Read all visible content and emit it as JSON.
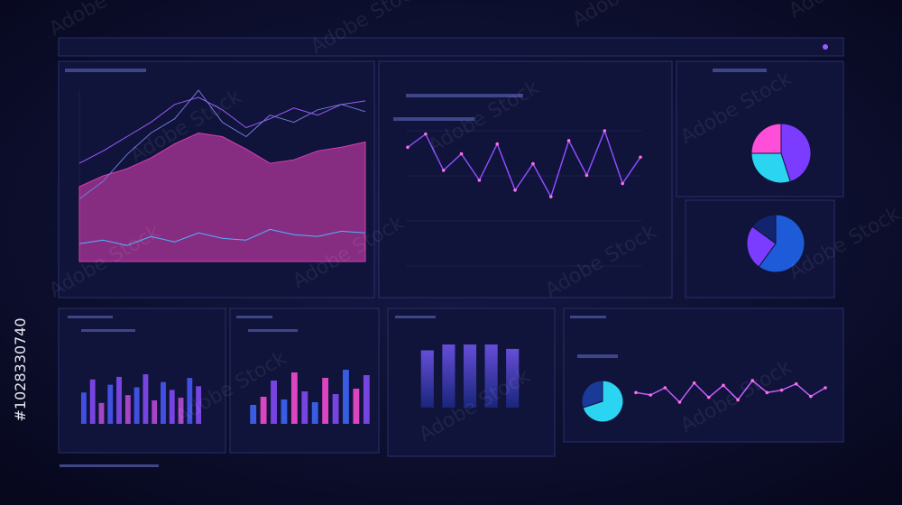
{
  "watermark": "Adobe Stock",
  "image_id": "#1028330740",
  "area_chart": {
    "type": "area",
    "series": [
      {
        "color": "#d63fb0",
        "values": [
          42,
          48,
          52,
          58,
          66,
          72,
          70,
          63,
          55,
          57,
          62,
          64,
          67
        ]
      },
      {
        "color": "#9a5cff",
        "values": [
          55,
          62,
          70,
          78,
          88,
          92,
          85,
          75,
          80,
          86,
          82,
          88,
          90
        ]
      },
      {
        "color": "#6f7bd8",
        "values": [
          35,
          45,
          60,
          72,
          80,
          96,
          78,
          70,
          82,
          78,
          85,
          88,
          84
        ]
      },
      {
        "color": "#4fb3ff",
        "values": [
          10,
          12,
          9,
          14,
          11,
          16,
          13,
          12,
          18,
          15,
          14,
          17,
          16
        ]
      }
    ]
  },
  "line_chart": {
    "type": "line",
    "color": "#8a4dff",
    "values": [
      72,
      80,
      58,
      68,
      52,
      74,
      46,
      62,
      42,
      76,
      55,
      82,
      50,
      66
    ]
  },
  "pies": [
    {
      "type": "pie",
      "values": [
        45,
        30,
        25
      ],
      "colors": [
        "#7b3cff",
        "#2bd4f0",
        "#ff4fd8"
      ]
    },
    {
      "type": "pie",
      "values": [
        60,
        25,
        15
      ],
      "colors": [
        "#1e5bd8",
        "#7b3cff",
        "#12246e"
      ]
    },
    {
      "type": "pie",
      "values": [
        70,
        30
      ],
      "colors": [
        "#2bd4f0",
        "#1a3a9a"
      ]
    }
  ],
  "bar_charts": [
    {
      "type": "bar",
      "values": [
        60,
        85,
        40,
        75,
        90,
        55,
        70,
        95,
        45,
        80,
        65,
        50,
        88,
        72
      ],
      "colors": [
        "#4a5cff",
        "#8a4dff",
        "#c24fe0"
      ]
    },
    {
      "type": "bar",
      "values": [
        35,
        50,
        80,
        45,
        95,
        60,
        40,
        85,
        55,
        100,
        65,
        90
      ],
      "colors": [
        "#3f6bff",
        "#ff4fd8",
        "#8a4dff"
      ]
    }
  ],
  "columns": {
    "type": "bar",
    "values": [
      78,
      86,
      86,
      86,
      80
    ],
    "color": "#5b4dff"
  },
  "wave_chart": {
    "type": "line",
    "color": "#c65cff",
    "values": [
      50,
      45,
      60,
      30,
      70,
      40,
      65,
      35,
      75,
      50,
      55,
      68,
      42,
      60
    ]
  }
}
